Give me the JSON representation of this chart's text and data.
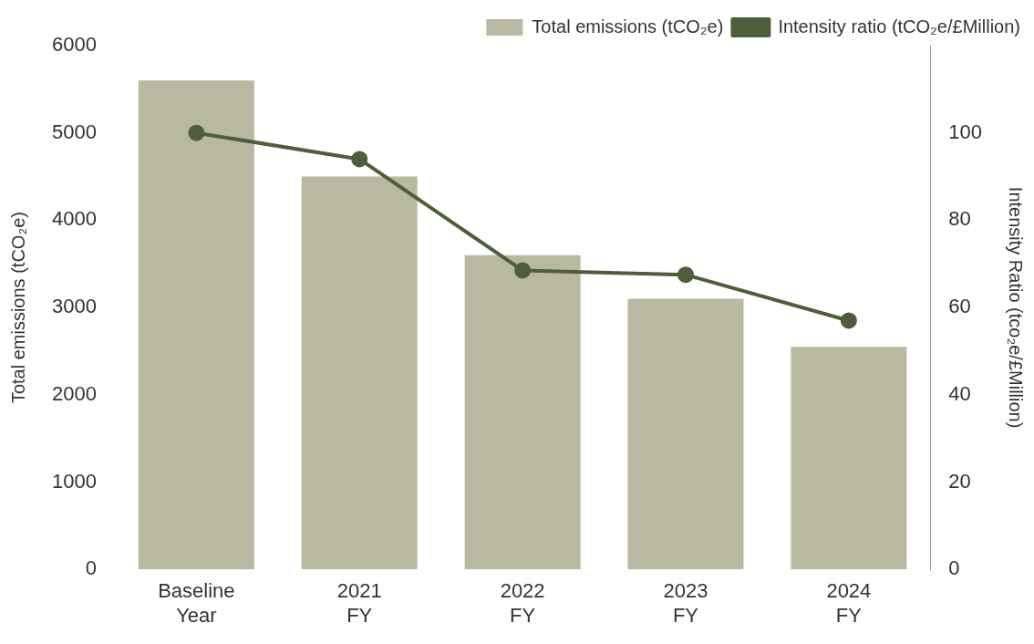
{
  "chart_data": {
    "type": "bar",
    "categories": [
      "Baseline\nYear",
      "2021\nFY",
      "2022\nFY",
      "2023\nFY",
      "2024\nFY"
    ],
    "series": [
      {
        "name": "Total emissions (tCO₂e)",
        "color": "#b9b9a2",
        "values": [
          5600,
          4500,
          3600,
          3100,
          2550
        ]
      },
      {
        "name": "Intensity ratio (tCO₂e/£Million)",
        "type": "line",
        "axis": "y2",
        "color": "#4e5e3a",
        "values": [
          100,
          94,
          68.5,
          67.5,
          57
        ]
      }
    ],
    "ylabel": "Total emissions (tCO₂e)",
    "y2label": "Intensity Ratio (tco₂e/£Million)",
    "ylim": [
      0,
      6000
    ],
    "yticks": [
      0,
      1000,
      2000,
      3000,
      4000,
      5000,
      6000
    ],
    "y2lim": [
      0,
      120
    ],
    "y2ticks": [
      0,
      20,
      40,
      60,
      80,
      100
    ],
    "grid": false,
    "legend": "top right",
    "marker": "circle",
    "line_style": "solid"
  }
}
